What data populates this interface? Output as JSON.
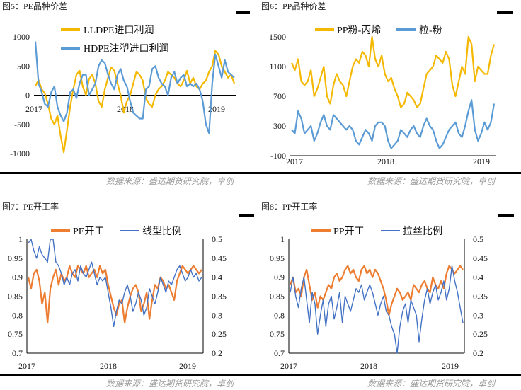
{
  "sources": {
    "row1_left": "数据来源：盛达期货研究院，卓创",
    "row1_right": "数据来源：盛达期货研究院，卓创",
    "row2_left": "数据来源：盛达期货研究院，卓创",
    "row2_right": "数据来源：盛达期货研究院，卓创"
  },
  "chart_data": [
    {
      "id": "c1",
      "type": "line",
      "title": "图5：PE品种价差",
      "y_ticks": [
        "1000",
        "500",
        "0",
        "-500",
        "-1000"
      ],
      "x_ticks": [
        "2017",
        "2018",
        "2019"
      ],
      "ylim": [
        -1000,
        1000
      ],
      "x_axis_at_zero": true,
      "legend_position": "top-center",
      "series": [
        {
          "name": "LLDPE进口利润",
          "color": "#F5B800",
          "values": [
            160,
            260,
            100,
            30,
            -150,
            -400,
            -500,
            -350,
            -700,
            -980,
            -600,
            -200,
            100,
            350,
            420,
            150,
            0,
            280,
            350,
            200,
            -100,
            -200,
            100,
            300,
            480,
            420,
            200,
            0,
            -300,
            -100,
            0,
            200,
            400,
            350,
            250,
            -50,
            -150,
            -200,
            0,
            100,
            150,
            250,
            400,
            350,
            300,
            200,
            150,
            250,
            420,
            200,
            300,
            150,
            100,
            200,
            250,
            400,
            500,
            760,
            700,
            500,
            400,
            300,
            350,
            200
          ]
        },
        {
          "name": "HDPE注塑进口利润",
          "color": "#5B9BD5",
          "values": [
            920,
            200,
            50,
            -150,
            -200,
            50,
            150,
            -200,
            -350,
            -450,
            -300,
            50,
            100,
            -50,
            200,
            350,
            350,
            0,
            100,
            200,
            500,
            600,
            550,
            350,
            200,
            100,
            350,
            450,
            250,
            150,
            -100,
            -300,
            -350,
            -400,
            -400,
            100,
            150,
            450,
            500,
            300,
            200,
            150,
            0,
            300,
            400,
            200,
            300,
            350,
            150,
            200,
            150,
            200,
            100,
            -100,
            -500,
            -650,
            200,
            700,
            500,
            300,
            600,
            400,
            350,
            300
          ]
        }
      ]
    },
    {
      "id": "c2",
      "type": "line",
      "title": "图6：PP品种价差",
      "y_ticks": [
        "1500",
        "1100",
        "700",
        "300",
        "-100"
      ],
      "x_ticks": [
        "2017",
        "2018",
        "2019"
      ],
      "ylim": [
        -100,
        1500
      ],
      "legend_position": "top-center",
      "series": [
        {
          "name": "PP粉-丙烯",
          "color": "#F5B800",
          "values": [
            1150,
            1050,
            1200,
            900,
            850,
            900,
            1050,
            700,
            800,
            950,
            1100,
            700,
            600,
            850,
            1000,
            900,
            850,
            700,
            900,
            1100,
            1200,
            1150,
            1300,
            1250,
            1100,
            1500,
            1200,
            1100,
            1250,
            1000,
            900,
            950,
            800,
            700,
            550,
            600,
            750,
            700,
            650,
            550,
            600,
            800,
            1000,
            1050,
            1100,
            1250,
            1200,
            1150,
            1300,
            1200,
            850,
            700,
            900,
            1100,
            1000,
            1500,
            1400,
            900,
            1100,
            1050,
            1000,
            1000,
            1250,
            1400
          ]
        },
        {
          "name": "粒-粉",
          "color": "#5B9BD5",
          "values": [
            250,
            200,
            500,
            400,
            200,
            250,
            300,
            100,
            200,
            350,
            450,
            300,
            250,
            450,
            400,
            350,
            300,
            250,
            300,
            250,
            100,
            50,
            150,
            250,
            200,
            100,
            300,
            350,
            350,
            300,
            100,
            0,
            50,
            100,
            250,
            200,
            150,
            250,
            300,
            200,
            150,
            300,
            400,
            300,
            250,
            100,
            0,
            50,
            150,
            250,
            300,
            350,
            200,
            150,
            300,
            500,
            650,
            250,
            100,
            200,
            350,
            250,
            350,
            600
          ]
        }
      ]
    },
    {
      "id": "c3",
      "type": "line",
      "title": "图7：PE开工率",
      "y_ticks": [
        "1",
        "0.95",
        "0.9",
        "0.85",
        "0.8",
        "0.75",
        "0.7"
      ],
      "y2_ticks": [
        "0.5",
        "0.45",
        "0.4",
        "0.35",
        "0.3",
        "0.25",
        "0.2"
      ],
      "x_ticks": [
        "2017",
        "2018",
        "2019"
      ],
      "ylim": [
        0.7,
        1.0
      ],
      "y2lim": [
        0.2,
        0.5
      ],
      "legend_position": "top-center",
      "series": [
        {
          "name": "PE开工",
          "color": "#ED7D31",
          "axis": "left",
          "values": [
            0.9,
            0.87,
            0.91,
            0.92,
            0.89,
            0.83,
            0.86,
            0.78,
            0.87,
            0.9,
            0.92,
            0.88,
            0.91,
            0.89,
            0.9,
            0.93,
            0.91,
            0.9,
            0.93,
            0.92,
            0.91,
            0.93,
            0.9,
            0.91,
            0.92,
            0.9,
            0.93,
            0.91,
            0.92,
            0.88,
            0.85,
            0.82,
            0.8,
            0.83,
            0.84,
            0.78,
            0.82,
            0.85,
            0.87,
            0.88,
            0.86,
            0.81,
            0.83,
            0.86,
            0.79,
            0.84,
            0.88,
            0.87,
            0.9,
            0.89,
            0.87,
            0.88,
            0.86,
            0.84,
            0.89,
            0.91,
            0.93,
            0.92,
            0.91,
            0.92,
            0.93,
            0.92,
            0.91,
            0.92
          ]
        },
        {
          "name": "线型比例",
          "color": "#4472C4",
          "axis": "right",
          "values": [
            0.49,
            0.5,
            0.47,
            0.45,
            0.48,
            0.46,
            0.45,
            0.44,
            0.5,
            0.5,
            0.44,
            0.43,
            0.41,
            0.38,
            0.4,
            0.38,
            0.41,
            0.42,
            0.39,
            0.43,
            0.41,
            0.4,
            0.42,
            0.44,
            0.41,
            0.38,
            0.4,
            0.39,
            0.4,
            0.36,
            0.32,
            0.27,
            0.31,
            0.34,
            0.33,
            0.36,
            0.38,
            0.35,
            0.31,
            0.33,
            0.36,
            0.34,
            0.3,
            0.32,
            0.37,
            0.35,
            0.33,
            0.36,
            0.4,
            0.38,
            0.36,
            0.39,
            0.38,
            0.4,
            0.42,
            0.43,
            0.41,
            0.39,
            0.4,
            0.42,
            0.4,
            0.41,
            0.39,
            0.4
          ]
        }
      ]
    },
    {
      "id": "c4",
      "type": "line",
      "title": "图8：PP开工率",
      "y_ticks": [
        "1",
        "0.95",
        "0.9",
        "0.85",
        "0.8",
        "0.75",
        "0.7"
      ],
      "y2_ticks": [
        "0.5",
        "0.45",
        "0.4",
        "0.35",
        "0.3",
        "0.25",
        "0.2"
      ],
      "x_ticks": [
        "2017",
        "2018",
        "2019"
      ],
      "ylim": [
        0.7,
        1.0
      ],
      "y2lim": [
        0.2,
        0.5
      ],
      "legend_position": "top-center",
      "series": [
        {
          "name": "PP开工",
          "color": "#ED7D31",
          "axis": "left",
          "values": [
            0.88,
            0.9,
            0.86,
            0.87,
            0.85,
            0.9,
            0.92,
            0.88,
            0.84,
            0.86,
            0.82,
            0.85,
            0.84,
            0.86,
            0.88,
            0.87,
            0.9,
            0.91,
            0.89,
            0.9,
            0.92,
            0.93,
            0.91,
            0.92,
            0.9,
            0.89,
            0.92,
            0.93,
            0.91,
            0.92,
            0.9,
            0.92,
            0.91,
            0.89,
            0.87,
            0.84,
            0.8,
            0.83,
            0.85,
            0.87,
            0.86,
            0.84,
            0.85,
            0.86,
            0.84,
            0.88,
            0.87,
            0.86,
            0.88,
            0.89,
            0.87,
            0.86,
            0.9,
            0.88,
            0.87,
            0.89,
            0.87,
            0.91,
            0.93,
            0.92,
            0.91,
            0.92,
            0.93,
            0.92
          ]
        },
        {
          "name": "拉丝比例",
          "color": "#4472C4",
          "axis": "right",
          "values": [
            0.36,
            0.4,
            0.35,
            0.32,
            0.37,
            0.4,
            0.34,
            0.28,
            0.36,
            0.33,
            0.25,
            0.3,
            0.34,
            0.27,
            0.33,
            0.35,
            0.29,
            0.32,
            0.36,
            0.28,
            0.35,
            0.33,
            0.31,
            0.34,
            0.37,
            0.36,
            0.38,
            0.34,
            0.36,
            0.38,
            0.36,
            0.33,
            0.3,
            0.33,
            0.35,
            0.31,
            0.3,
            0.27,
            0.25,
            0.2,
            0.27,
            0.31,
            0.33,
            0.28,
            0.34,
            0.32,
            0.3,
            0.23,
            0.29,
            0.34,
            0.37,
            0.33,
            0.36,
            0.38,
            0.34,
            0.36,
            0.39,
            0.34,
            0.37,
            0.43,
            0.39,
            0.36,
            0.32,
            0.28
          ]
        }
      ]
    }
  ]
}
